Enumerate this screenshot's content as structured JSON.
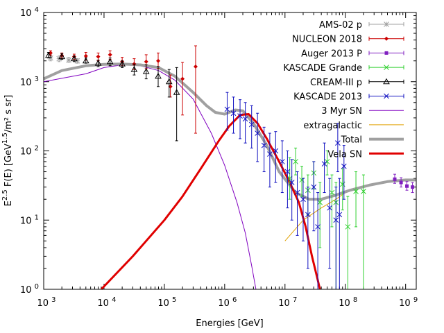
{
  "chart_data": {
    "type": "line",
    "xscale": "log",
    "yscale": "log",
    "xlim": [
      1000,
      1500000000
    ],
    "ylim": [
      1,
      10000
    ],
    "xlabel": "Energies [GeV]",
    "ylabel_parts": [
      "E",
      "2.5",
      " F(E) [GeV",
      "1.5",
      "/m² s sr]"
    ],
    "x_ticks": [
      {
        "value": 1000,
        "base": "10",
        "exp": "3"
      },
      {
        "value": 10000,
        "base": "10",
        "exp": "4"
      },
      {
        "value": 100000,
        "base": "10",
        "exp": "5"
      },
      {
        "value": 1000000,
        "base": "10",
        "exp": "6"
      },
      {
        "value": 10000000,
        "base": "10",
        "exp": "7"
      },
      {
        "value": 100000000,
        "base": "10",
        "exp": "8"
      },
      {
        "value": 1000000000,
        "base": "10",
        "exp": "9"
      }
    ],
    "y_ticks": [
      {
        "value": 1,
        "base": "10",
        "exp": "0"
      },
      {
        "value": 10,
        "base": "10",
        "exp": "1"
      },
      {
        "value": 100,
        "base": "10",
        "exp": "2"
      },
      {
        "value": 1000,
        "base": "10",
        "exp": "3"
      },
      {
        "value": 10000,
        "base": "10",
        "exp": "4"
      }
    ],
    "series": [
      {
        "name": "AMS-02 p",
        "kind": "points",
        "color": "#a0a0a0",
        "marker": "star",
        "points": [
          [
            1300,
            2200,
            2000,
            2450
          ],
          [
            1800,
            2150,
            1950,
            2350
          ],
          [
            2600,
            2050,
            1900,
            2250
          ],
          [
            3600,
            2000,
            1850,
            2150
          ]
        ]
      },
      {
        "name": "NUCLEON 2018",
        "kind": "points",
        "color": "#cc0000",
        "marker": "diamond",
        "points": [
          [
            1300,
            2600,
            2400,
            2800
          ],
          [
            2000,
            2400,
            2200,
            2600
          ],
          [
            3200,
            2300,
            2100,
            2500
          ],
          [
            5000,
            2350,
            2050,
            2650
          ],
          [
            8000,
            2300,
            2000,
            2600
          ],
          [
            12600,
            2450,
            2100,
            2800
          ],
          [
            20000,
            1950,
            1700,
            2250
          ],
          [
            31600,
            1800,
            1500,
            2150
          ],
          [
            50000,
            1950,
            1550,
            2450
          ],
          [
            79000,
            2000,
            1550,
            2600
          ],
          [
            126000,
            850,
            600,
            1250
          ],
          [
            200000,
            1100,
            330,
            1900
          ],
          [
            330000,
            1650,
            180,
            3300
          ]
        ]
      },
      {
        "name": "Auger 2013 P",
        "kind": "points",
        "color": "#8020c0",
        "marker": "square",
        "points": [
          [
            660000000,
            39,
            34,
            46
          ],
          [
            840000000,
            35,
            30,
            41
          ],
          [
            1050000000,
            31,
            27,
            36
          ],
          [
            1300000000,
            30,
            25,
            35
          ]
        ]
      },
      {
        "name": "KASCADE Grande",
        "kind": "points",
        "color": "#30d030",
        "marker": "x",
        "points": [
          [
            12000000,
            40,
            20,
            80
          ],
          [
            15000000,
            70,
            45,
            110
          ],
          [
            19000000,
            38,
            22,
            60
          ],
          [
            24000000,
            27,
            12,
            45
          ],
          [
            30000000,
            48,
            28,
            70
          ],
          [
            38000000,
            18,
            4,
            35
          ],
          [
            50000000,
            70,
            45,
            100
          ],
          [
            60000000,
            25,
            8,
            45
          ],
          [
            70000000,
            18,
            1,
            35
          ],
          [
            90000000,
            33,
            14,
            55
          ],
          [
            110000000,
            8,
            1,
            22
          ],
          [
            150000000,
            26,
            8,
            50
          ],
          [
            200000000,
            26,
            1,
            45
          ]
        ]
      },
      {
        "name": "CREAM-III p",
        "kind": "points",
        "color": "#000000",
        "marker": "triangle",
        "points": [
          [
            1200,
            2400,
            2200,
            2650
          ],
          [
            2000,
            2300,
            2100,
            2550
          ],
          [
            3200,
            2150,
            1950,
            2350
          ],
          [
            5000,
            2000,
            1850,
            2200
          ],
          [
            8000,
            1850,
            1650,
            2050
          ],
          [
            12600,
            1950,
            1700,
            2200
          ],
          [
            20000,
            1800,
            1600,
            2000
          ],
          [
            31600,
            1500,
            1250,
            1800
          ],
          [
            50000,
            1400,
            1100,
            1750
          ],
          [
            79000,
            1200,
            850,
            1650
          ],
          [
            120000,
            1000,
            600,
            1500
          ],
          [
            160000,
            700,
            140,
            1600
          ]
        ]
      },
      {
        "name": "KASCADE 2013",
        "kind": "points",
        "color": "#1010c0",
        "marker": "x",
        "points": [
          [
            1100000,
            400,
            200,
            700
          ],
          [
            1400000,
            350,
            180,
            600
          ],
          [
            1800000,
            320,
            150,
            550
          ],
          [
            2200000,
            290,
            130,
            500
          ],
          [
            2800000,
            240,
            110,
            450
          ],
          [
            3500000,
            180,
            70,
            350
          ],
          [
            4500000,
            120,
            50,
            220
          ],
          [
            5600000,
            90,
            30,
            180
          ],
          [
            7000000,
            100,
            35,
            190
          ],
          [
            9000000,
            70,
            25,
            140
          ],
          [
            11000000,
            50,
            15,
            100
          ],
          [
            13000000,
            35,
            10,
            75
          ],
          [
            16000000,
            25,
            6,
            50
          ],
          [
            20000000,
            20,
            5,
            40
          ],
          [
            24000000,
            12,
            2,
            30
          ],
          [
            30000000,
            30,
            7,
            70
          ],
          [
            35000000,
            8,
            1,
            25
          ],
          [
            45000000,
            65,
            25,
            130
          ],
          [
            55000000,
            15,
            2,
            40
          ],
          [
            70000000,
            10,
            1,
            30
          ],
          [
            75000000,
            130,
            50,
            250
          ],
          [
            80000000,
            12,
            1,
            40
          ],
          [
            95000000,
            60,
            20,
            120
          ]
        ]
      },
      {
        "name": "3 Myr SN",
        "kind": "curve",
        "color": "#8000c0",
        "width": 1,
        "points": [
          [
            1000,
            1000
          ],
          [
            5000,
            1300
          ],
          [
            10000,
            1600
          ],
          [
            20000,
            1750
          ],
          [
            40000,
            1700
          ],
          [
            80000,
            1450
          ],
          [
            150000,
            1050
          ],
          [
            300000,
            560
          ],
          [
            600000,
            180
          ],
          [
            1000000,
            62
          ],
          [
            1600000,
            18
          ],
          [
            2200000,
            6.5
          ],
          [
            2800000,
            2.2
          ],
          [
            3300000,
            1
          ]
        ]
      },
      {
        "name": "extragalactic",
        "kind": "curve",
        "color": "#e0a000",
        "width": 1,
        "points": [
          [
            10000000,
            5
          ],
          [
            20000000,
            10
          ],
          [
            40000000,
            15
          ],
          [
            70000000,
            20
          ],
          [
            100000000,
            25
          ],
          [
            200000000,
            30
          ],
          [
            400000000,
            35
          ],
          [
            800000000,
            37
          ],
          [
            1500000000,
            38
          ]
        ]
      },
      {
        "name": "Total",
        "kind": "curve",
        "color": "#a0a0a0",
        "width": 4,
        "points": [
          [
            1000,
            1100
          ],
          [
            2000,
            1450
          ],
          [
            5000,
            1700
          ],
          [
            10000,
            1780
          ],
          [
            20000,
            1800
          ],
          [
            40000,
            1750
          ],
          [
            80000,
            1600
          ],
          [
            150000,
            1200
          ],
          [
            300000,
            700
          ],
          [
            500000,
            450
          ],
          [
            700000,
            360
          ],
          [
            1000000,
            340
          ],
          [
            1500000,
            390
          ],
          [
            2000000,
            380
          ],
          [
            3000000,
            250
          ],
          [
            5000000,
            120
          ],
          [
            8000000,
            50
          ],
          [
            15000000,
            25
          ],
          [
            25000000,
            20
          ],
          [
            40000000,
            20
          ],
          [
            70000000,
            23
          ],
          [
            120000000,
            27
          ],
          [
            250000000,
            32
          ],
          [
            500000000,
            36
          ],
          [
            1000000000,
            38
          ],
          [
            1500000000,
            38
          ]
        ]
      },
      {
        "name": "Vela SN",
        "kind": "curve",
        "color": "#e00000",
        "width": 3,
        "points": [
          [
            9000,
            1
          ],
          [
            30000,
            3
          ],
          [
            100000,
            10
          ],
          [
            200000,
            22
          ],
          [
            400000,
            55
          ],
          [
            800000,
            140
          ],
          [
            1200000,
            230
          ],
          [
            1800000,
            330
          ],
          [
            2500000,
            340
          ],
          [
            3500000,
            250
          ],
          [
            5000000,
            150
          ],
          [
            8000000,
            70
          ],
          [
            12000000,
            35
          ],
          [
            17000000,
            18
          ],
          [
            22000000,
            8
          ],
          [
            28000000,
            3
          ],
          [
            34000000,
            1.5
          ],
          [
            38000000,
            1
          ]
        ]
      }
    ]
  }
}
